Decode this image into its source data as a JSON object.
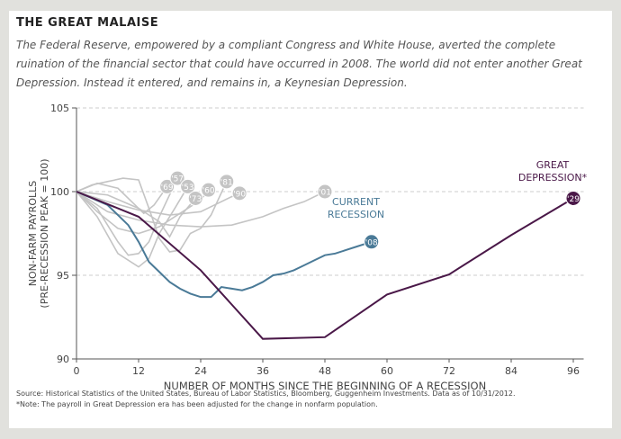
{
  "title": "THE GREAT MALAISE",
  "subtitle": "The Federal Reserve, empowered by a compliant Congress and White House, averted the complete ruination of the financial sector that could have occurred in 2008. The world did not enter another Great Depression. Instead it entered, and remains in, a Keynesian Depression.",
  "source": "Source: Historical Statistics of the United States, Bureau of Labor Statistics, Bloomberg, Guggenheim Investments. Data as of 10/31/2012.",
  "note": "*Note: The payroll in Great Depression era has been adjusted for the change in nonfarm population.",
  "chart_data": {
    "type": "line",
    "xlabel": "NUMBER OF MONTHS SINCE THE BEGINNING OF A RECESSION",
    "ylabel": [
      "NON-FARM PAYROLLS",
      "(PRE-RECESSION PEAK = 100)"
    ],
    "xlim": [
      0,
      98
    ],
    "ylim": [
      90,
      105
    ],
    "xticks": [
      0,
      12,
      24,
      36,
      48,
      60,
      72,
      84,
      96
    ],
    "yticks": [
      90,
      95,
      100,
      105
    ],
    "grid": "horizontal dashed",
    "colors": {
      "past": "#c4c4c4",
      "current": "#4a7a97",
      "depression": "#4a1848"
    },
    "series": [
      {
        "name": "'69",
        "kind": "past",
        "points": [
          [
            0,
            100
          ],
          [
            4,
            100.5
          ],
          [
            8,
            100.2
          ],
          [
            11,
            99.3
          ],
          [
            13,
            98.7
          ],
          [
            15,
            99.2
          ],
          [
            17.5,
            100.3
          ]
        ]
      },
      {
        "name": "'57",
        "kind": "past",
        "points": [
          [
            0,
            100
          ],
          [
            4,
            99
          ],
          [
            8,
            97
          ],
          [
            10,
            96.2
          ],
          [
            12,
            96.3
          ],
          [
            14,
            97
          ],
          [
            16,
            98.5
          ],
          [
            19.5,
            100.8
          ]
        ]
      },
      {
        "name": "'53",
        "kind": "past",
        "points": [
          [
            0,
            100
          ],
          [
            4,
            98.5
          ],
          [
            8,
            96.3
          ],
          [
            12,
            95.5
          ],
          [
            14,
            96
          ],
          [
            16,
            97.5
          ],
          [
            19,
            99
          ],
          [
            21.5,
            100.3
          ]
        ]
      },
      {
        "name": "'73",
        "kind": "past",
        "points": [
          [
            0,
            100
          ],
          [
            6,
            99.8
          ],
          [
            12,
            99
          ],
          [
            16,
            98.2
          ],
          [
            18,
            97.3
          ],
          [
            20,
            98.5
          ],
          [
            23,
            99.6
          ]
        ]
      },
      {
        "name": "'60",
        "kind": "past",
        "points": [
          [
            0,
            100
          ],
          [
            4,
            98.8
          ],
          [
            8,
            97.8
          ],
          [
            12,
            97.5
          ],
          [
            16,
            97.9
          ],
          [
            20,
            98.7
          ],
          [
            24,
            99.5
          ],
          [
            25.5,
            100.1
          ]
        ]
      },
      {
        "name": "'81",
        "kind": "past",
        "points": [
          [
            0,
            100
          ],
          [
            3,
            100.4
          ],
          [
            6,
            100.6
          ],
          [
            9,
            100.8
          ],
          [
            12,
            100.7
          ],
          [
            14,
            99
          ],
          [
            16,
            97.2
          ],
          [
            18,
            96.4
          ],
          [
            20,
            96.5
          ],
          [
            22,
            97.5
          ],
          [
            24,
            97.8
          ],
          [
            26,
            98.6
          ],
          [
            29,
            100.6
          ]
        ]
      },
      {
        "name": "'90",
        "kind": "past",
        "points": [
          [
            0,
            100
          ],
          [
            6,
            99.4
          ],
          [
            12,
            98.9
          ],
          [
            18,
            98.6
          ],
          [
            24,
            98.8
          ],
          [
            30,
            99.7
          ],
          [
            31.5,
            99.9
          ]
        ]
      },
      {
        "name": "'01",
        "kind": "past",
        "points": [
          [
            0,
            100
          ],
          [
            6,
            98.8
          ],
          [
            12,
            98.3
          ],
          [
            18,
            98
          ],
          [
            24,
            97.9
          ],
          [
            30,
            98
          ],
          [
            36,
            98.5
          ],
          [
            40,
            99
          ],
          [
            44,
            99.4
          ],
          [
            48,
            100
          ]
        ]
      },
      {
        "name": "'08",
        "kind": "current",
        "label": "CURRENT RECESSION",
        "points": [
          [
            0,
            100
          ],
          [
            6,
            99.2
          ],
          [
            10,
            98
          ],
          [
            12,
            97
          ],
          [
            14,
            95.8
          ],
          [
            16,
            95.2
          ],
          [
            18,
            94.6
          ],
          [
            20,
            94.2
          ],
          [
            22,
            93.9
          ],
          [
            24,
            93.7
          ],
          [
            26,
            93.7
          ],
          [
            27,
            94
          ],
          [
            28,
            94.3
          ],
          [
            30,
            94.2
          ],
          [
            32,
            94.1
          ],
          [
            34,
            94.3
          ],
          [
            36,
            94.6
          ],
          [
            38,
            95
          ],
          [
            40,
            95.1
          ],
          [
            42,
            95.3
          ],
          [
            44,
            95.6
          ],
          [
            46,
            95.9
          ],
          [
            48,
            96.2
          ],
          [
            50,
            96.3
          ],
          [
            52,
            96.5
          ],
          [
            54,
            96.7
          ],
          [
            57,
            97
          ]
        ]
      },
      {
        "name": "'29",
        "kind": "depression",
        "label": "GREAT DEPRESSION*",
        "points": [
          [
            0,
            100
          ],
          [
            12,
            98.5
          ],
          [
            24,
            95.3
          ],
          [
            36,
            91.2
          ],
          [
            48,
            91.3
          ],
          [
            60,
            93.85
          ],
          [
            72,
            95.05
          ],
          [
            84,
            97.4
          ],
          [
            96,
            99.6
          ]
        ]
      }
    ]
  }
}
